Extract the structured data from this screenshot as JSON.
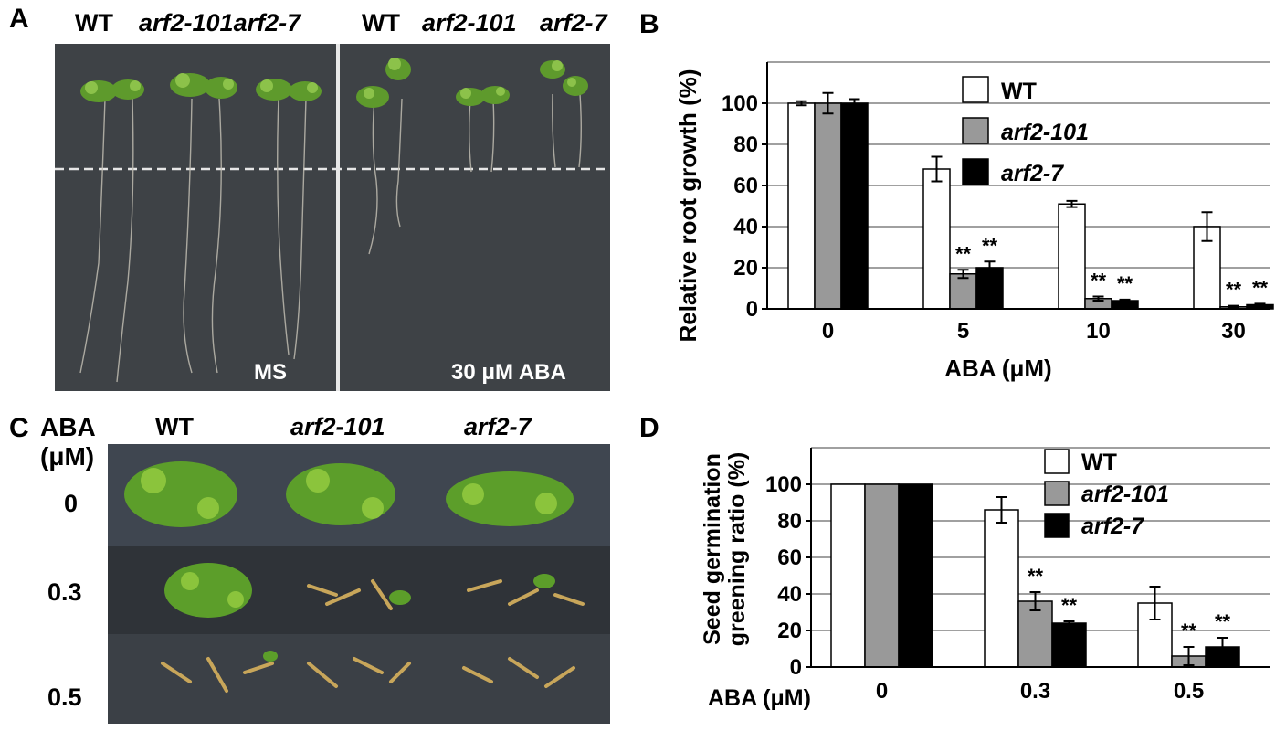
{
  "panel_a": {
    "letter": "A",
    "headers": [
      "WT",
      "arf2-101arf2-7",
      "WT",
      "arf2-101",
      "arf2-7"
    ],
    "left_label": "MS",
    "right_label": "30 μM ABA"
  },
  "panel_c": {
    "letter": "C",
    "aba_header": "ABA",
    "unit_header": "(μM)",
    "col_headers": [
      "WT",
      "arf2-101",
      "arf2-7"
    ],
    "row_labels": [
      "0",
      "0.3",
      "0.5"
    ]
  },
  "chart_data": [
    {
      "type": "bar",
      "panel": "B",
      "categories": [
        "0",
        "5",
        "10",
        "30"
      ],
      "xlabel": "ABA (μM)",
      "ylabel": "Relative root growth (%)",
      "ylim": [
        0,
        120
      ],
      "yticks": [
        "0",
        "20",
        "40",
        "60",
        "80",
        "100"
      ],
      "grid": true,
      "legend_position": "top-right",
      "series": [
        {
          "name": "WT",
          "values": [
            100,
            68,
            51,
            40
          ],
          "errors": [
            1,
            6,
            1.5,
            7
          ],
          "stars": [
            "",
            "",
            "",
            ""
          ]
        },
        {
          "name": "arf2-101",
          "values": [
            100,
            17,
            5,
            1
          ],
          "errors": [
            5,
            2,
            1,
            0.5
          ],
          "stars": [
            "",
            "**",
            "**",
            "**"
          ]
        },
        {
          "name": "arf2-7",
          "values": [
            100,
            20,
            4,
            2
          ],
          "errors": [
            2,
            3,
            0.5,
            0.5
          ],
          "stars": [
            "",
            "**",
            "**",
            "**"
          ]
        }
      ]
    },
    {
      "type": "bar",
      "panel": "D",
      "categories": [
        "0",
        "0.3",
        "0.5"
      ],
      "xlabel": "ABA (μM)",
      "ylabel_line1": "Seed germination",
      "ylabel_line2": "greening ratio (%)",
      "ylim": [
        0,
        120
      ],
      "yticks": [
        "0",
        "20",
        "40",
        "60",
        "80",
        "100"
      ],
      "grid": true,
      "legend_position": "top-right",
      "series": [
        {
          "name": "WT",
          "values": [
            100,
            86,
            35
          ],
          "errors": [
            0,
            7,
            9
          ],
          "stars": [
            "",
            "",
            ""
          ]
        },
        {
          "name": "arf2-101",
          "values": [
            100,
            36,
            6
          ],
          "errors": [
            0,
            5,
            5
          ],
          "stars": [
            "",
            "**",
            "**"
          ]
        },
        {
          "name": "arf2-7",
          "values": [
            100,
            24,
            11
          ],
          "errors": [
            0,
            1,
            5
          ],
          "stars": [
            "",
            "**",
            "**"
          ]
        }
      ]
    }
  ],
  "colors": {
    "wt": "#ffffff",
    "arf2_101": "#999999",
    "arf2_7": "#000000",
    "grid": "#a0a0a0",
    "photo_bg": "#3d4145"
  }
}
